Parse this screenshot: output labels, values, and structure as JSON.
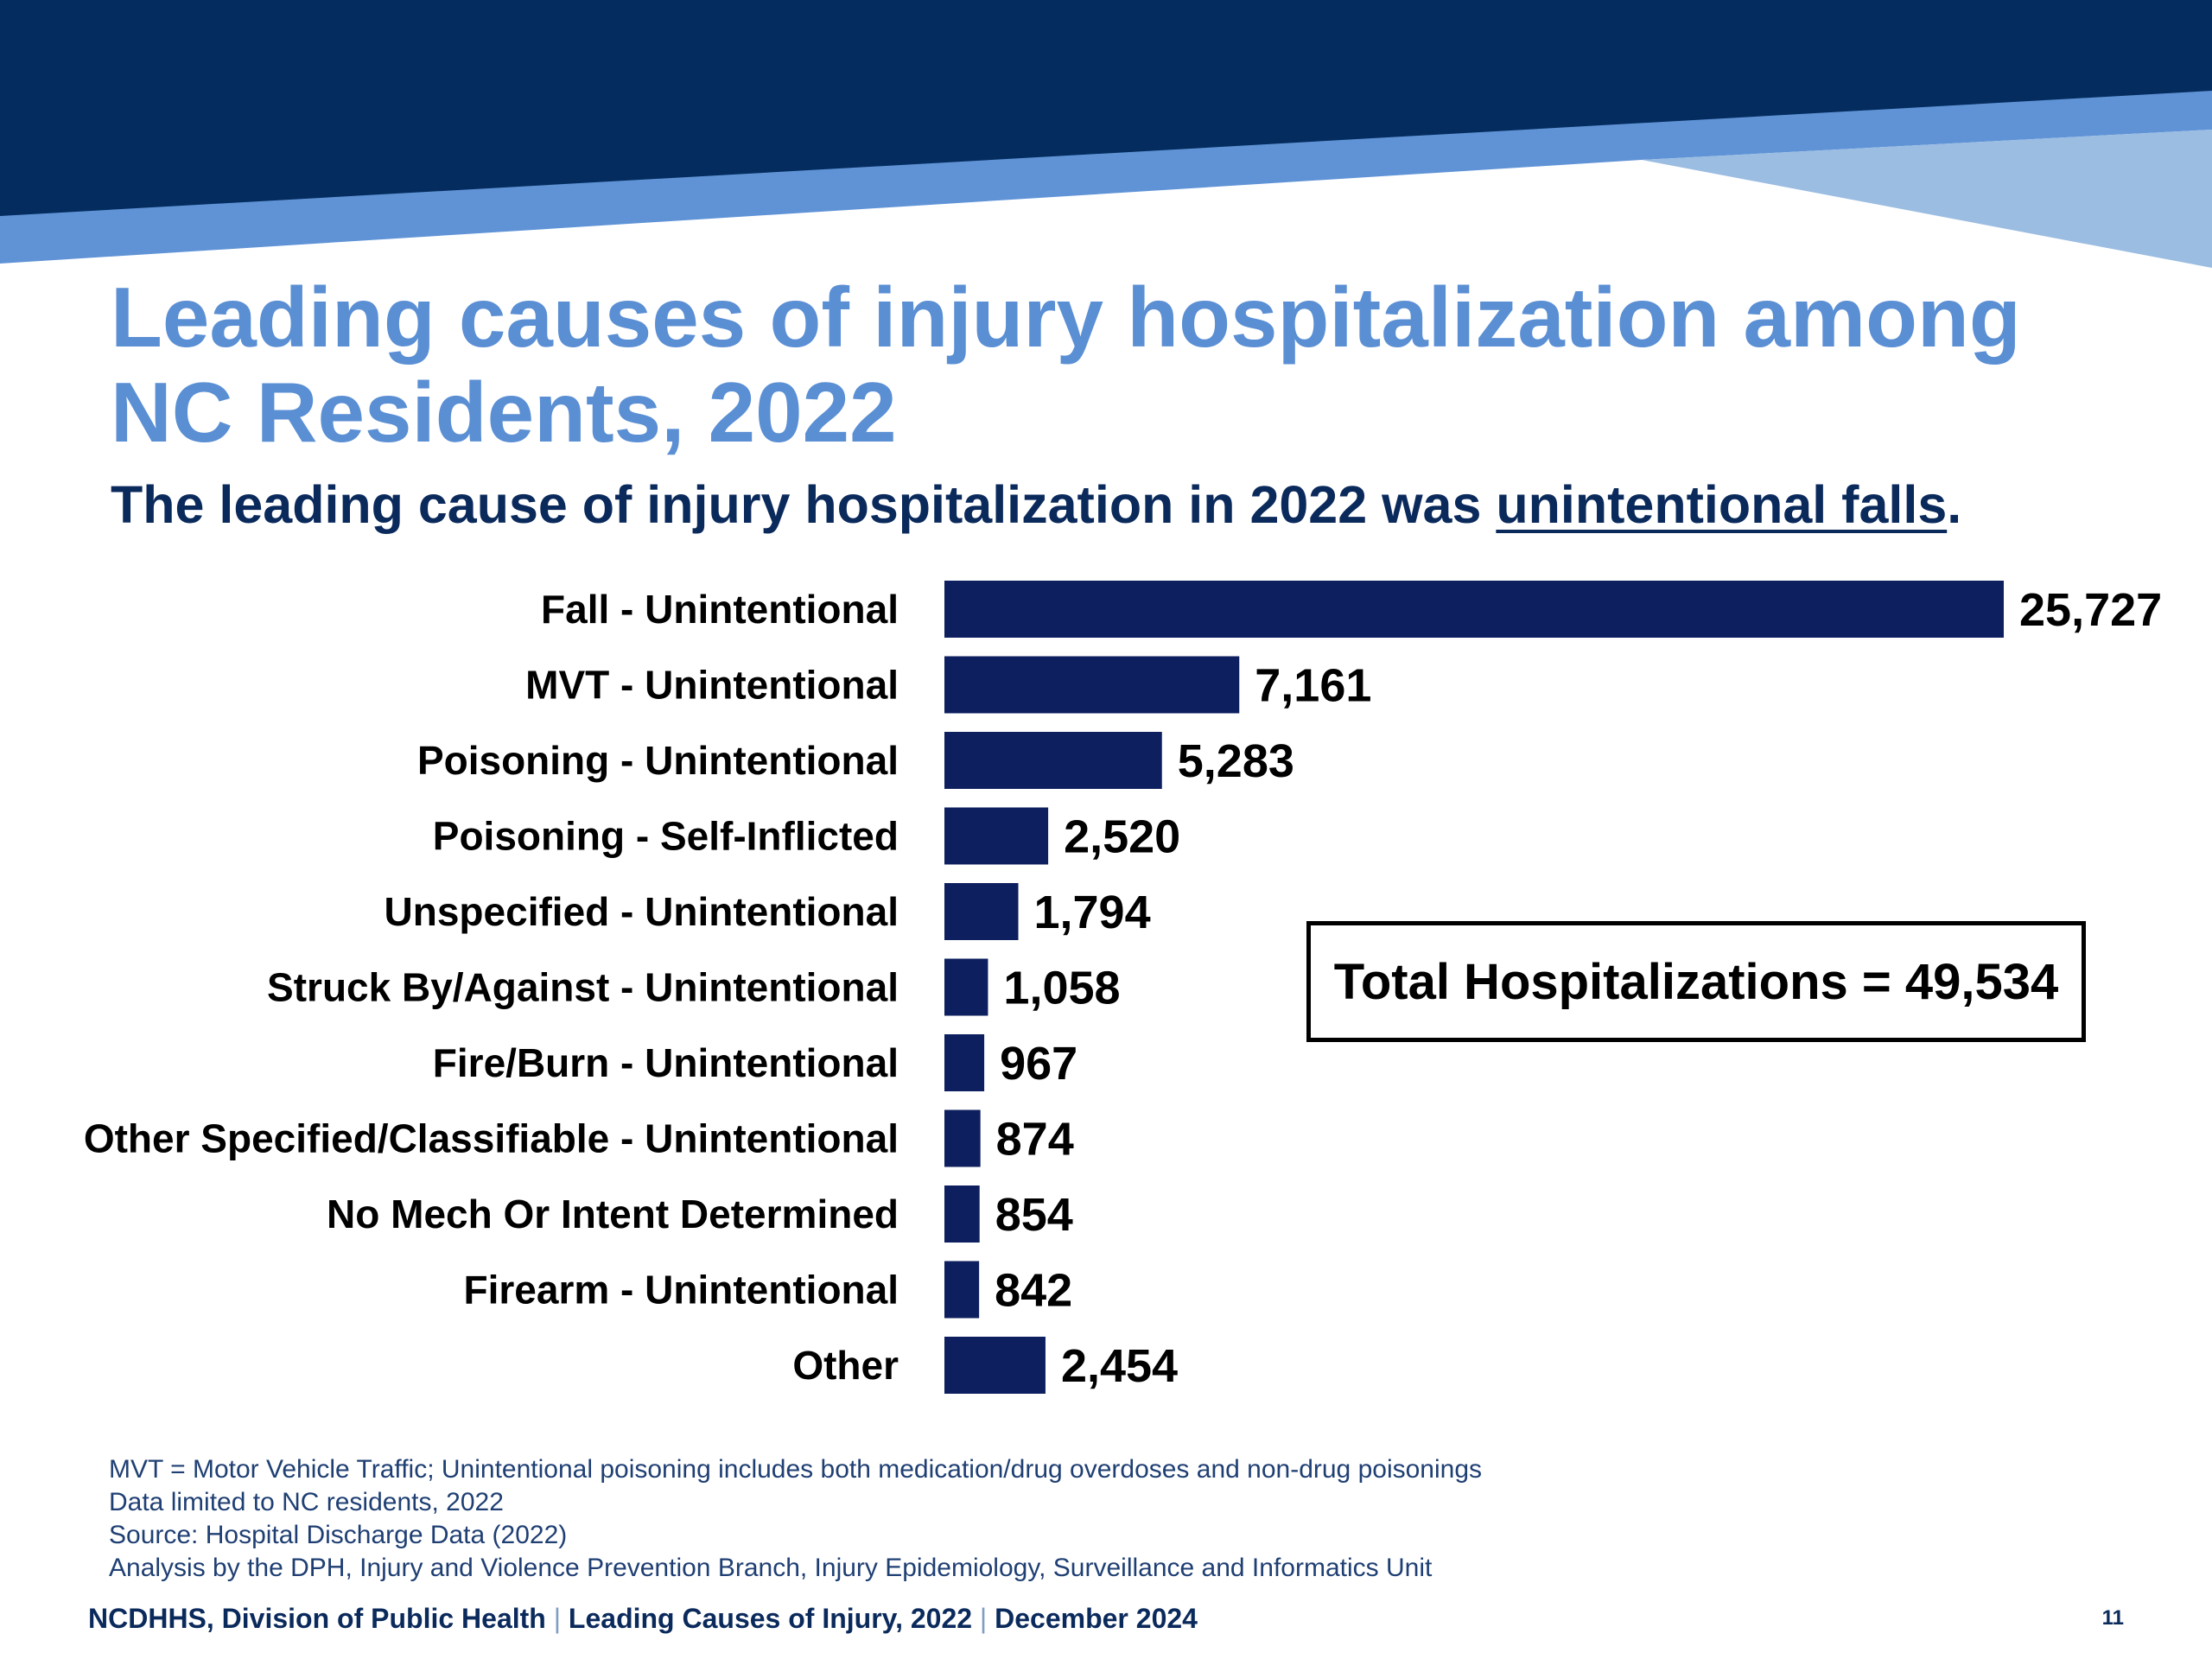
{
  "slide": {
    "title": "Leading causes of injury hospitalization among NC Residents, 2022",
    "subtitle_prefix": "The leading cause of injury hospitalization in 2022 was ",
    "subtitle_emphasis": "unintentional falls",
    "subtitle_suffix": ".",
    "total_box": "Total Hospitalizations = 49,534"
  },
  "chart_data": {
    "type": "bar",
    "orientation": "horizontal",
    "categories": [
      "Fall - Unintentional",
      "MVT - Unintentional",
      "Poisoning - Unintentional",
      "Poisoning - Self-Inflicted",
      "Unspecified - Unintentional",
      "Struck By/Against - Unintentional",
      "Fire/Burn - Unintentional",
      "Other Specified/Classifiable - Unintentional",
      "No Mech Or Intent Determined",
      "Firearm - Unintentional",
      "Other"
    ],
    "values": [
      25727,
      7161,
      5283,
      2520,
      1794,
      1058,
      967,
      874,
      854,
      842,
      2454
    ],
    "data_labels": [
      "25,727",
      "7,161",
      "5,283",
      "2,520",
      "1,794",
      "1,058",
      "967",
      "874",
      "854",
      "842",
      "2,454"
    ],
    "xlim": [
      0,
      25727
    ],
    "bar_color": "#0d1f5e",
    "grid": false,
    "legend": "none"
  },
  "notes": [
    "MVT = Motor Vehicle Traffic; Unintentional poisoning includes both medication/drug overdoses and non-drug poisonings",
    "Data limited to NC residents, 2022",
    "Source: Hospital Discharge Data (2022)",
    "Analysis by the DPH, Injury and Violence Prevention Branch, Injury Epidemiology, Surveillance and Informatics Unit"
  ],
  "footer": {
    "org": "NCDHHS, Division of Public Health",
    "report": "Leading Causes of Injury, 2022",
    "date": "December 2024",
    "separator": "|",
    "page_number": "11"
  },
  "colors": {
    "banner_navy": "#042c5e",
    "banner_blue": "#5f93d6",
    "banner_light": "#9bbde2",
    "title_blue": "#5b8fd4",
    "subtitle_navy": "#0b2a5c"
  }
}
